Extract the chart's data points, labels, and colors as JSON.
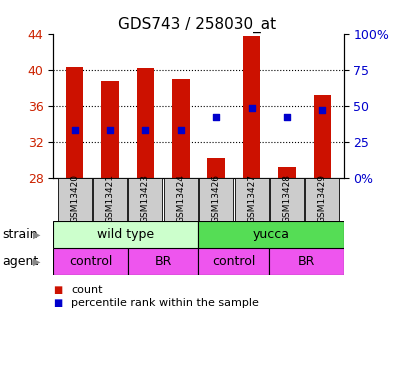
{
  "title": "GDS743 / 258030_at",
  "samples": [
    "GSM13420",
    "GSM13421",
    "GSM13423",
    "GSM13424",
    "GSM13426",
    "GSM13427",
    "GSM13428",
    "GSM13429"
  ],
  "bar_values": [
    40.3,
    38.8,
    40.2,
    39.0,
    30.2,
    43.7,
    29.2,
    37.2
  ],
  "bar_bottom": 28.0,
  "blue_dot_values": [
    33.3,
    33.3,
    33.3,
    33.3,
    34.8,
    35.8,
    34.8,
    35.6
  ],
  "ylim_left": [
    28,
    44
  ],
  "ylim_right": [
    0,
    100
  ],
  "yticks_left": [
    28,
    32,
    36,
    40,
    44
  ],
  "yticks_right": [
    0,
    25,
    50,
    75,
    100
  ],
  "ytick_labels_right": [
    "0%",
    "25",
    "50",
    "75",
    "100%"
  ],
  "bar_color": "#cc1100",
  "dot_color": "#0000cc",
  "grid_values": [
    32,
    36,
    40
  ],
  "strain_labels": [
    "wild type",
    "yucca"
  ],
  "strain_colors": [
    "#ccffcc",
    "#55dd55"
  ],
  "agent_labels": [
    "control",
    "BR",
    "control",
    "BR"
  ],
  "agent_color": "#ee55ee",
  "tick_label_color_left": "#cc2200",
  "tick_label_color_right": "#0000cc",
  "legend_count_color": "#cc1100",
  "legend_dot_color": "#0000cc",
  "sample_bg": "#cccccc",
  "title_fontsize": 11,
  "axis_fontsize": 9,
  "label_fontsize": 9
}
